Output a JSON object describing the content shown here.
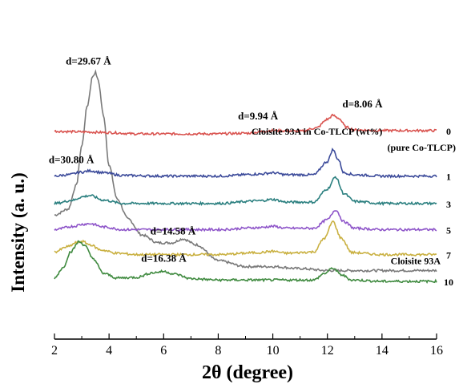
{
  "chart_data": {
    "type": "line",
    "title": "",
    "xlabel": "2θ (degree)",
    "ylabel": "Intensity (a. u.)",
    "xlim": [
      2,
      16
    ],
    "xticks": [
      "2",
      "4",
      "6",
      "8",
      "10",
      "12",
      "14",
      "16"
    ],
    "grid": false,
    "legend_title": "Cloisite 93A in Co-TLCP (wt%)",
    "series": [
      {
        "name": "Cloisite 93A",
        "color": "#7a7a7a",
        "baseline": 0.0,
        "x": [
          2.0,
          2.5,
          2.8,
          3.0,
          3.2,
          3.4,
          3.5,
          3.6,
          3.8,
          4.0,
          4.3,
          4.7,
          5.2,
          5.8,
          6.3,
          6.7,
          7.2,
          8.0,
          9.0,
          10.0,
          11.0,
          12.0,
          13.0,
          14.0,
          15.0,
          16.0
        ],
        "y": [
          0.3,
          0.33,
          0.45,
          0.65,
          0.85,
          1.0,
          1.02,
          0.98,
          0.8,
          0.55,
          0.38,
          0.28,
          0.2,
          0.16,
          0.16,
          0.18,
          0.15,
          0.07,
          0.04,
          0.04,
          0.03,
          0.02,
          0.02,
          0.02,
          0.02,
          0.02
        ]
      },
      {
        "name": "0",
        "color": "#d9534f",
        "baseline": 1.04,
        "x": [
          2.0,
          3.0,
          4.0,
          5.0,
          6.0,
          7.0,
          8.0,
          9.0,
          10.0,
          11.0,
          11.6,
          12.0,
          12.2,
          12.4,
          12.7,
          13.0,
          14.0,
          15.0,
          16.0
        ],
        "y": [
          0.04,
          0.03,
          0.02,
          0.0,
          0.0,
          0.0,
          0.0,
          0.01,
          0.05,
          0.04,
          0.09,
          0.22,
          0.28,
          0.24,
          0.1,
          0.06,
          0.05,
          0.05,
          0.05
        ]
      },
      {
        "name": "1",
        "color": "#3b4a9a",
        "baseline": 1.75,
        "x": [
          2.0,
          2.5,
          3.0,
          3.3,
          3.8,
          4.5,
          6.0,
          8.0,
          9.5,
          10.0,
          10.5,
          11.5,
          12.0,
          12.2,
          12.4,
          12.6,
          13.0,
          14.0,
          15.0,
          16.0
        ],
        "y": [
          0.0,
          0.02,
          0.06,
          0.08,
          0.05,
          0.01,
          0.0,
          0.0,
          0.03,
          0.05,
          0.02,
          0.02,
          0.22,
          0.4,
          0.25,
          0.05,
          0.02,
          0.0,
          0.0,
          0.0
        ]
      },
      {
        "name": "3",
        "color": "#2a7f7f",
        "baseline": 2.21,
        "x": [
          2.0,
          2.7,
          3.0,
          3.3,
          3.8,
          4.5,
          6.0,
          8.0,
          9.5,
          10.0,
          10.5,
          11.5,
          12.0,
          12.3,
          12.6,
          13.0,
          14.0,
          15.0,
          16.0
        ],
        "y": [
          0.0,
          0.05,
          0.1,
          0.12,
          0.05,
          0.0,
          0.0,
          0.0,
          0.04,
          0.06,
          0.02,
          0.02,
          0.22,
          0.4,
          0.15,
          0.03,
          0.0,
          0.0,
          0.0
        ]
      },
      {
        "name": "5",
        "color": "#8e55c9",
        "baseline": 2.65,
        "x": [
          2.0,
          2.7,
          3.0,
          3.3,
          3.8,
          4.5,
          6.0,
          8.0,
          9.5,
          10.0,
          10.5,
          11.5,
          12.0,
          12.3,
          12.6,
          13.0,
          14.0,
          15.0,
          16.0
        ],
        "y": [
          0.0,
          0.05,
          0.08,
          0.09,
          0.04,
          0.0,
          0.0,
          0.0,
          0.03,
          0.05,
          0.02,
          0.02,
          0.15,
          0.3,
          0.12,
          0.02,
          0.0,
          0.0,
          0.0
        ]
      },
      {
        "name": "7",
        "color": "#c9b040",
        "baseline": 3.07,
        "x": [
          2.0,
          2.5,
          2.8,
          3.0,
          3.3,
          3.7,
          4.3,
          5.0,
          6.0,
          8.0,
          9.5,
          10.0,
          10.5,
          11.5,
          11.9,
          12.2,
          12.5,
          12.9,
          14.0,
          15.0,
          16.0
        ],
        "y": [
          0.04,
          0.12,
          0.18,
          0.2,
          0.15,
          0.07,
          0.02,
          0.0,
          0.0,
          0.0,
          0.03,
          0.05,
          0.02,
          0.04,
          0.25,
          0.5,
          0.25,
          0.03,
          0.0,
          0.0,
          0.0
        ]
      },
      {
        "name": "10",
        "color": "#3f8a3f",
        "baseline": 3.52,
        "x": [
          2.0,
          2.3,
          2.6,
          2.9,
          3.1,
          3.4,
          3.8,
          4.3,
          5.0,
          5.6,
          6.0,
          6.4,
          7.0,
          8.0,
          10.0,
          11.5,
          11.9,
          12.2,
          12.5,
          12.9,
          14.0,
          15.0,
          16.0
        ],
        "y": [
          0.05,
          0.2,
          0.45,
          0.6,
          0.55,
          0.35,
          0.12,
          0.05,
          0.06,
          0.13,
          0.15,
          0.11,
          0.04,
          0.02,
          0.02,
          0.02,
          0.12,
          0.2,
          0.1,
          0.02,
          0.0,
          0.0,
          0.0
        ]
      }
    ],
    "series_labels": [
      {
        "text": "Cloisite 93A",
        "series": 0
      },
      {
        "text": "0",
        "series": 1
      },
      {
        "text": "(pure Co-TLCP)",
        "series": 1
      },
      {
        "text": "1",
        "series": 2
      },
      {
        "text": "3",
        "series": 3
      },
      {
        "text": "5",
        "series": 4
      },
      {
        "text": "7",
        "series": 5
      },
      {
        "text": "10",
        "series": 6
      }
    ],
    "annotations": [
      {
        "text": "d=29.67 Å",
        "series": 0,
        "x": 3.5
      },
      {
        "text": "d=14.58 Å",
        "series": 0,
        "x": 6.6
      },
      {
        "text": "d=9.94 Å",
        "series": 1,
        "x": 9.9
      },
      {
        "text": "d=8.06 Å",
        "series": 1,
        "x": 12.2
      },
      {
        "text": "d=30.80 Å",
        "series": 2,
        "x": 3.2
      },
      {
        "text": "d=16.38 Å",
        "series": 6,
        "x": 6.0
      }
    ]
  }
}
